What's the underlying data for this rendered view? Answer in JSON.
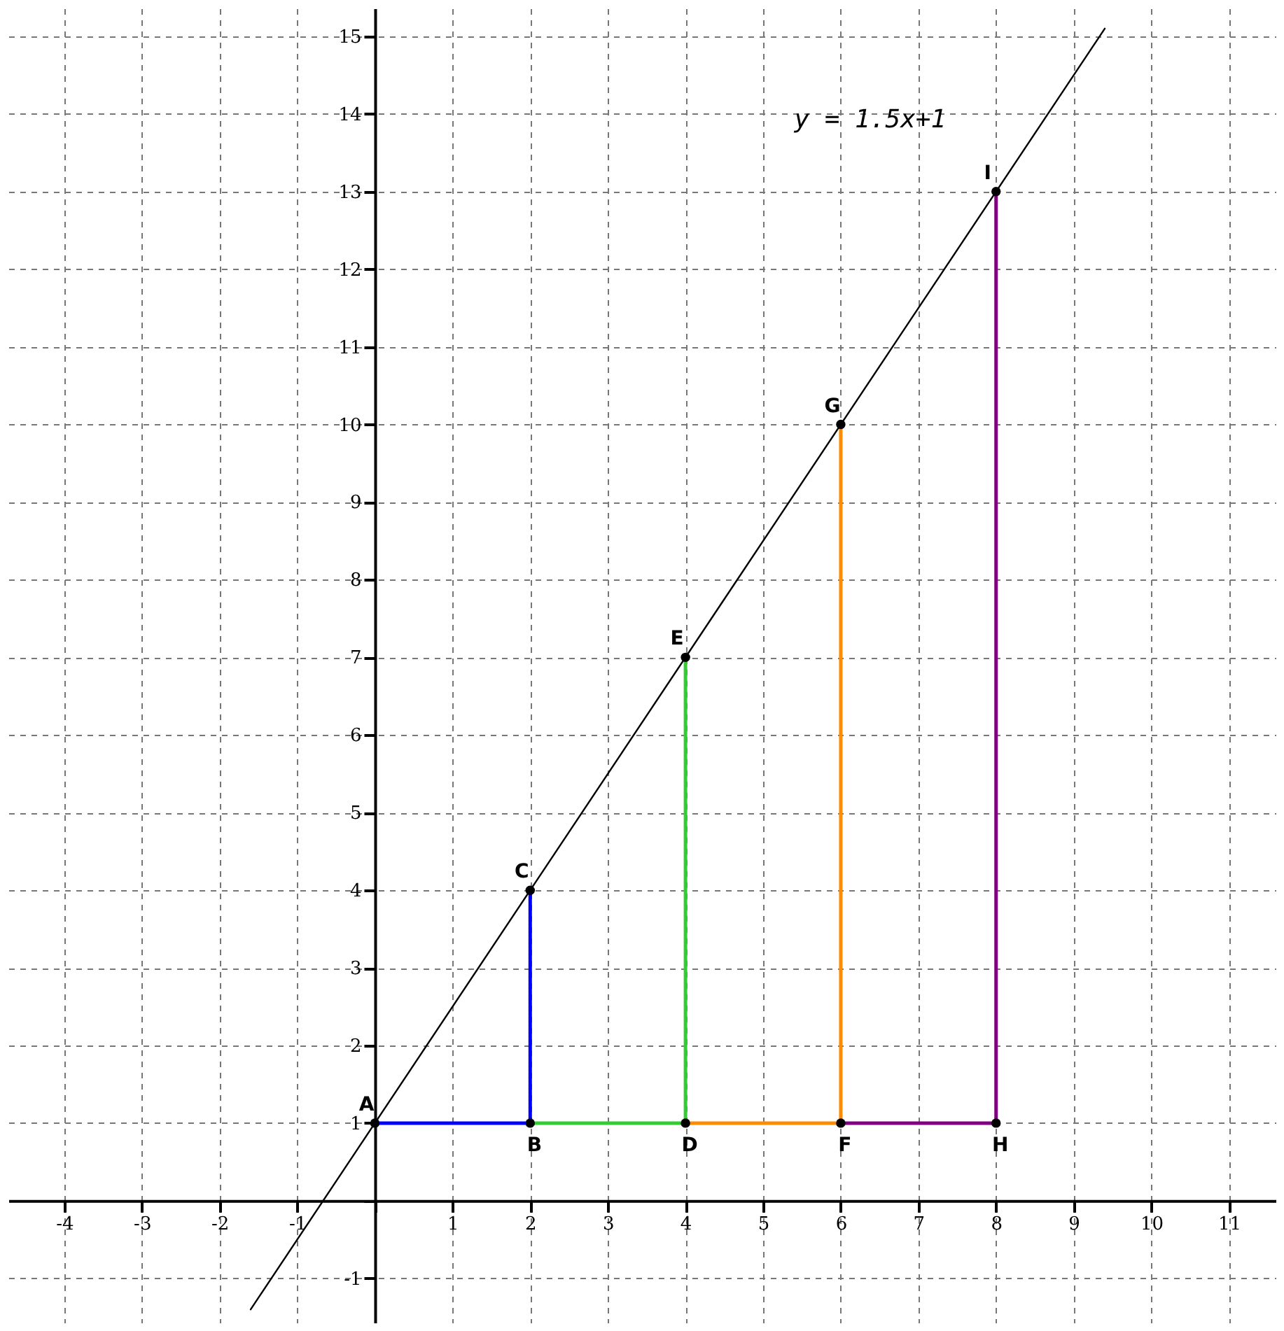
{
  "chart_data": {
    "type": "line",
    "xlim": [
      -4.72,
      11.6
    ],
    "ylim": [
      -1.57,
      15.36
    ],
    "xticks": [
      -4,
      -3,
      -2,
      -1,
      {
        "value": 0,
        "label": null
      },
      1,
      2,
      3,
      4,
      5,
      6,
      7,
      8,
      9,
      10,
      11
    ],
    "yticks": [
      -1,
      {
        "value": 0,
        "label": null
      },
      1,
      2,
      3,
      4,
      5,
      6,
      7,
      8,
      9,
      10,
      11,
      12,
      13,
      14,
      15
    ],
    "grid": true,
    "line_style": "solid",
    "series": [
      {
        "color": "#000000",
        "x": [
          -1.6,
          9.4
        ],
        "values": [
          -1.4,
          15.1
        ]
      },
      {
        "color": "#0000ff",
        "x": [
          0,
          2,
          2
        ],
        "values": [
          1,
          1,
          4
        ]
      },
      {
        "color": "#33cc33",
        "x": [
          2,
          4,
          4
        ],
        "values": [
          1,
          1,
          7
        ]
      },
      {
        "color": "#ff8c00",
        "x": [
          4,
          6,
          6
        ],
        "values": [
          1,
          1,
          10
        ]
      },
      {
        "color": "#800080",
        "x": [
          6,
          8,
          8
        ],
        "values": [
          1,
          1,
          13
        ]
      },
      {
        "type": "scatter",
        "marker": "circle",
        "color": "#000000",
        "x": [
          0,
          2,
          2,
          4,
          4,
          6,
          6,
          8,
          8
        ],
        "values": [
          1,
          1,
          4,
          1,
          7,
          1,
          10,
          1,
          13
        ]
      }
    ],
    "annotations": [
      {
        "text": "A",
        "x": 0,
        "y": 1
      },
      {
        "text": "B",
        "x": 2,
        "y": 1
      },
      {
        "text": "C",
        "x": 2,
        "y": 4
      },
      {
        "text": "D",
        "x": 4,
        "y": 1
      },
      {
        "text": "E",
        "x": 4,
        "y": 7
      },
      {
        "text": "F",
        "x": 6,
        "y": 1
      },
      {
        "text": "G",
        "x": 6,
        "y": 10
      },
      {
        "text": "H",
        "x": 8,
        "y": 1
      },
      {
        "text": "I",
        "x": 8,
        "y": 13
      },
      "y = 1.5x+1"
    ]
  }
}
